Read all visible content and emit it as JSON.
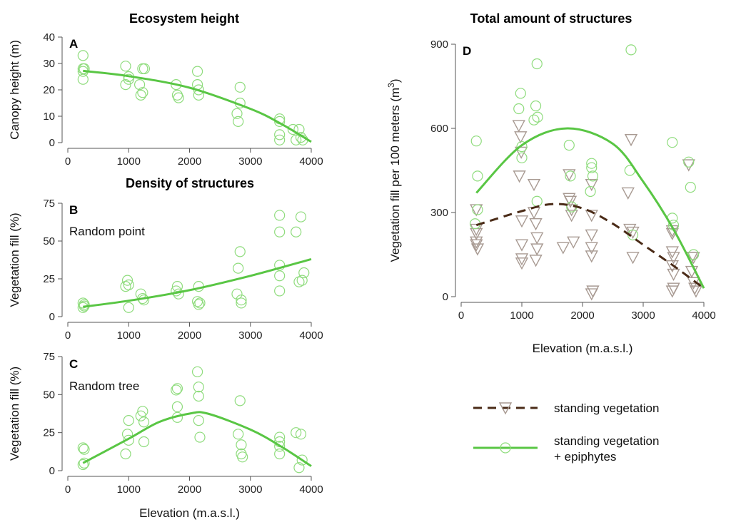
{
  "colors": {
    "green": "#6fd45a",
    "green_line": "#59c644",
    "brown": "#4a2b17",
    "triangle": "#a89a92",
    "axis": "#555555"
  },
  "legend": {
    "standing": "standing vegetation",
    "epiphytes_line1": "standing vegetation",
    "epiphytes_line2": "+ epiphytes"
  },
  "chart_data": [
    {
      "id": "A",
      "type": "scatter",
      "title": "Ecosystem height",
      "panel_label": "A",
      "subtitle": "",
      "xlabel": "",
      "ylabel": "Canopy height (m)",
      "xlim": [
        0,
        4000
      ],
      "ylim": [
        0,
        40
      ],
      "xticks": [
        0,
        1000,
        2000,
        3000,
        4000
      ],
      "yticks": [
        0,
        10,
        20,
        30,
        40
      ],
      "series": [
        {
          "points": [
            [
              250,
              33
            ],
            [
              250,
              28
            ],
            [
              250,
              27
            ],
            [
              250,
              24
            ],
            [
              270,
              28
            ],
            [
              950,
              29
            ],
            [
              950,
              22
            ],
            [
              1000,
              25
            ],
            [
              1000,
              24
            ],
            [
              1180,
              22
            ],
            [
              1200,
              18
            ],
            [
              1230,
              19
            ],
            [
              1230,
              28
            ],
            [
              1260,
              28
            ],
            [
              1780,
              22
            ],
            [
              1800,
              18
            ],
            [
              1820,
              17
            ],
            [
              2130,
              27
            ],
            [
              2130,
              22
            ],
            [
              2150,
              20
            ],
            [
              2150,
              18
            ],
            [
              2780,
              11
            ],
            [
              2800,
              8
            ],
            [
              2830,
              21
            ],
            [
              2830,
              15
            ],
            [
              3480,
              9
            ],
            [
              3480,
              8
            ],
            [
              3480,
              3
            ],
            [
              3480,
              1
            ],
            [
              3700,
              5
            ],
            [
              3750,
              1
            ],
            [
              3800,
              5
            ],
            [
              3830,
              2
            ],
            [
              3860,
              1
            ]
          ],
          "fit": [
            [
              250,
              27.2
            ],
            [
              1000,
              25.2
            ],
            [
              2000,
              20.8
            ],
            [
              3000,
              12.8
            ],
            [
              3500,
              7.2
            ],
            [
              4000,
              0.3
            ]
          ]
        }
      ]
    },
    {
      "id": "B",
      "type": "scatter",
      "title": "Density of structures",
      "panel_label": "B",
      "subtitle": "Random point",
      "xlabel": "",
      "ylabel": "Vegetation fill (%)",
      "xlim": [
        0,
        4000
      ],
      "ylim": [
        0,
        75
      ],
      "xticks": [
        0,
        1000,
        2000,
        3000,
        4000
      ],
      "yticks": [
        0,
        25,
        50,
        75
      ],
      "series": [
        {
          "points": [
            [
              250,
              9
            ],
            [
              250,
              6
            ],
            [
              270,
              8
            ],
            [
              270,
              7
            ],
            [
              950,
              20
            ],
            [
              980,
              24
            ],
            [
              1000,
              21
            ],
            [
              1000,
              6
            ],
            [
              1200,
              15
            ],
            [
              1230,
              12
            ],
            [
              1250,
              11
            ],
            [
              1780,
              17
            ],
            [
              1800,
              20
            ],
            [
              1820,
              15
            ],
            [
              2130,
              10
            ],
            [
              2150,
              20
            ],
            [
              2150,
              8
            ],
            [
              2170,
              9
            ],
            [
              2780,
              15
            ],
            [
              2800,
              32
            ],
            [
              2830,
              43
            ],
            [
              2850,
              11
            ],
            [
              2850,
              9
            ],
            [
              3480,
              67
            ],
            [
              3480,
              56
            ],
            [
              3480,
              34
            ],
            [
              3480,
              27
            ],
            [
              3480,
              17
            ],
            [
              3750,
              56
            ],
            [
              3800,
              23
            ],
            [
              3830,
              66
            ],
            [
              3850,
              24
            ],
            [
              3880,
              29
            ]
          ],
          "fit": [
            [
              250,
              6.5
            ],
            [
              1000,
              10.5
            ],
            [
              2000,
              17.5
            ],
            [
              3000,
              27
            ],
            [
              4000,
              38
            ]
          ]
        }
      ]
    },
    {
      "id": "C",
      "type": "scatter",
      "title": "",
      "panel_label": "C",
      "subtitle": "Random tree",
      "xlabel": "Elevation (m.a.s.l.)",
      "ylabel": "Vegetation fill (%)",
      "xlim": [
        0,
        4000
      ],
      "ylim": [
        0,
        75
      ],
      "xticks": [
        0,
        1000,
        2000,
        3000,
        4000
      ],
      "yticks": [
        0,
        25,
        50,
        75
      ],
      "series": [
        {
          "points": [
            [
              250,
              15
            ],
            [
              250,
              4
            ],
            [
              270,
              14
            ],
            [
              270,
              5
            ],
            [
              950,
              11
            ],
            [
              980,
              24
            ],
            [
              1000,
              33
            ],
            [
              1000,
              20
            ],
            [
              1200,
              36
            ],
            [
              1230,
              39
            ],
            [
              1250,
              19
            ],
            [
              1250,
              32
            ],
            [
              1780,
              53
            ],
            [
              1800,
              54
            ],
            [
              1800,
              42
            ],
            [
              1800,
              35
            ],
            [
              2130,
              65
            ],
            [
              2150,
              55
            ],
            [
              2150,
              49
            ],
            [
              2150,
              33
            ],
            [
              2170,
              22
            ],
            [
              2800,
              24
            ],
            [
              2830,
              46
            ],
            [
              2850,
              17
            ],
            [
              2850,
              11
            ],
            [
              2870,
              9
            ],
            [
              3480,
              22
            ],
            [
              3480,
              19
            ],
            [
              3480,
              16
            ],
            [
              3480,
              11
            ],
            [
              3750,
              25
            ],
            [
              3800,
              2
            ],
            [
              3830,
              24
            ],
            [
              3850,
              7
            ]
          ],
          "fit": [
            [
              250,
              5
            ],
            [
              1000,
              21
            ],
            [
              1500,
              32
            ],
            [
              2000,
              37.5
            ],
            [
              2300,
              37.5
            ],
            [
              3000,
              27
            ],
            [
              3500,
              16
            ],
            [
              4000,
              3
            ]
          ]
        }
      ]
    },
    {
      "id": "D",
      "type": "scatter",
      "title": "Total amount of structures",
      "panel_label": "D",
      "subtitle": "",
      "xlabel": "Elevation (m.a.s.l.)",
      "ylabel": "Vegetation fill per 100 meters",
      "ylabel_unit": "(m",
      "ylabel_exp": "3",
      "ylabel_close": ")",
      "xlim": [
        0,
        4000
      ],
      "ylim": [
        0,
        900
      ],
      "xticks": [
        0,
        1000,
        2000,
        3000,
        4000
      ],
      "yticks": [
        0,
        300,
        600,
        900
      ],
      "series": [
        {
          "name": "standing vegetation + epiphytes",
          "marker": "circle",
          "points": [
            [
              250,
              555
            ],
            [
              270,
              430
            ],
            [
              270,
              310
            ],
            [
              230,
              260
            ],
            [
              950,
              670
            ],
            [
              980,
              725
            ],
            [
              1000,
              535
            ],
            [
              1000,
              495
            ],
            [
              1200,
              630
            ],
            [
              1230,
              680
            ],
            [
              1250,
              830
            ],
            [
              1260,
              640
            ],
            [
              1250,
              340
            ],
            [
              1780,
              540
            ],
            [
              1800,
              430
            ],
            [
              1820,
              320
            ],
            [
              2150,
              475
            ],
            [
              2150,
              460
            ],
            [
              2170,
              430
            ],
            [
              2130,
              375
            ],
            [
              2800,
              880
            ],
            [
              2780,
              450
            ],
            [
              2830,
              220
            ],
            [
              3480,
              550
            ],
            [
              3480,
              280
            ],
            [
              3500,
              255
            ],
            [
              3750,
              480
            ],
            [
              3780,
              390
            ],
            [
              3830,
              150
            ]
          ],
          "fit": [
            [
              250,
              370
            ],
            [
              1000,
              540
            ],
            [
              1750,
              600
            ],
            [
              2500,
              545
            ],
            [
              3000,
              410
            ],
            [
              3500,
              240
            ],
            [
              4000,
              30
            ]
          ]
        },
        {
          "name": "standing vegetation",
          "marker": "triangle",
          "points": [
            [
              250,
              310
            ],
            [
              250,
              240
            ],
            [
              250,
              225
            ],
            [
              250,
              195
            ],
            [
              250,
              185
            ],
            [
              270,
              170
            ],
            [
              950,
              610
            ],
            [
              980,
              570
            ],
            [
              990,
              515
            ],
            [
              960,
              430
            ],
            [
              1000,
              270
            ],
            [
              1000,
              185
            ],
            [
              1000,
              135
            ],
            [
              1000,
              120
            ],
            [
              1200,
              400
            ],
            [
              1200,
              300
            ],
            [
              1230,
              260
            ],
            [
              1250,
              210
            ],
            [
              1250,
              170
            ],
            [
              1230,
              130
            ],
            [
              1680,
              175
            ],
            [
              1780,
              435
            ],
            [
              1780,
              350
            ],
            [
              1800,
              340
            ],
            [
              1820,
              310
            ],
            [
              1820,
              290
            ],
            [
              1850,
              195
            ],
            [
              2150,
              400
            ],
            [
              2150,
              290
            ],
            [
              2150,
              220
            ],
            [
              2150,
              175
            ],
            [
              2150,
              145
            ],
            [
              2170,
              20
            ],
            [
              2150,
              10
            ],
            [
              2750,
              370
            ],
            [
              2800,
              560
            ],
            [
              2780,
              240
            ],
            [
              2830,
              230
            ],
            [
              2830,
              140
            ],
            [
              3480,
              235
            ],
            [
              3480,
              225
            ],
            [
              3480,
              160
            ],
            [
              3500,
              140
            ],
            [
              3480,
              110
            ],
            [
              3500,
              80
            ],
            [
              3500,
              30
            ],
            [
              3480,
              20
            ],
            [
              3750,
              470
            ],
            [
              3800,
              140
            ],
            [
              3800,
              90
            ],
            [
              3830,
              50
            ],
            [
              3850,
              30
            ],
            [
              3870,
              20
            ],
            [
              3830,
              140
            ]
          ],
          "fit": [
            [
              250,
              255
            ],
            [
              1000,
              305
            ],
            [
              1500,
              330
            ],
            [
              2000,
              315
            ],
            [
              2500,
              260
            ],
            [
              3000,
              185
            ],
            [
              3500,
              110
            ],
            [
              4000,
              30
            ]
          ]
        }
      ]
    }
  ]
}
